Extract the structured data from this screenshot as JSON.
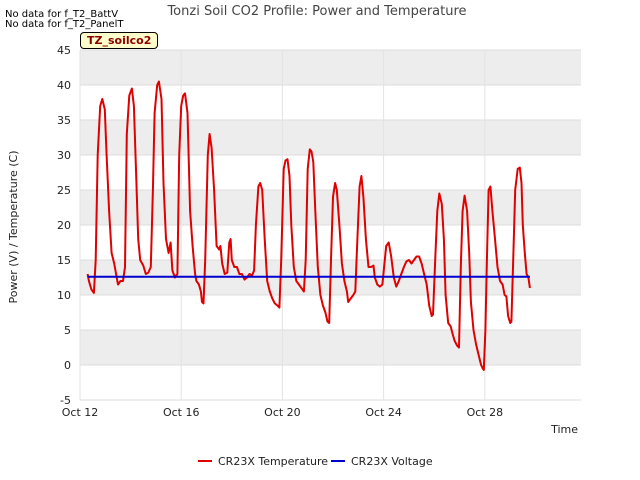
{
  "notes": [
    "No data for f_T2_BattV",
    "No data for f_T2_PanelT"
  ],
  "site_label": "TZ_soilco2",
  "chart_data": {
    "type": "line",
    "title": "Tonzi Soil CO2 Profile: Power and Temperature",
    "xlabel": "Time",
    "ylabel": "Power (V) / Temperature (C)",
    "ylim": [
      -5,
      45
    ],
    "yticks": [
      -5,
      0,
      5,
      10,
      15,
      20,
      25,
      30,
      35,
      40,
      45
    ],
    "xlim": [
      12,
      31.8
    ],
    "xticks": [
      {
        "v": 12,
        "label": "Oct 12"
      },
      {
        "v": 16,
        "label": "Oct 16"
      },
      {
        "v": 20,
        "label": "Oct 20"
      },
      {
        "v": 24,
        "label": "Oct 24"
      },
      {
        "v": 28,
        "label": "Oct 28"
      }
    ],
    "grid": true,
    "legend": "bottom",
    "series": [
      {
        "name": "CR23X Temperature",
        "color": "#e00000",
        "points": [
          [
            12.3,
            13.0
          ],
          [
            12.35,
            12.0
          ],
          [
            12.45,
            10.8
          ],
          [
            12.55,
            10.3
          ],
          [
            12.62,
            15.0
          ],
          [
            12.7,
            30.0
          ],
          [
            12.8,
            37.0
          ],
          [
            12.88,
            38.0
          ],
          [
            12.98,
            36.5
          ],
          [
            13.05,
            30.0
          ],
          [
            13.15,
            22.0
          ],
          [
            13.25,
            16.0
          ],
          [
            13.35,
            14.5
          ],
          [
            13.45,
            12.5
          ],
          [
            13.5,
            11.5
          ],
          [
            13.6,
            12.0
          ],
          [
            13.7,
            12.0
          ],
          [
            13.78,
            14.0
          ],
          [
            13.85,
            33.0
          ],
          [
            13.95,
            38.5
          ],
          [
            14.05,
            39.5
          ],
          [
            14.13,
            37.0
          ],
          [
            14.22,
            27.0
          ],
          [
            14.3,
            18.0
          ],
          [
            14.38,
            15.0
          ],
          [
            14.5,
            14.2
          ],
          [
            14.6,
            13.0
          ],
          [
            14.7,
            13.2
          ],
          [
            14.8,
            14.0
          ],
          [
            14.88,
            25.0
          ],
          [
            14.95,
            36.0
          ],
          [
            15.05,
            40.0
          ],
          [
            15.12,
            40.5
          ],
          [
            15.22,
            38.0
          ],
          [
            15.3,
            26.0
          ],
          [
            15.4,
            18.0
          ],
          [
            15.5,
            16.0
          ],
          [
            15.58,
            17.5
          ],
          [
            15.65,
            13.5
          ],
          [
            15.75,
            12.5
          ],
          [
            15.85,
            13.0
          ],
          [
            15.92,
            30.0
          ],
          [
            16.0,
            37.0
          ],
          [
            16.08,
            38.5
          ],
          [
            16.15,
            38.8
          ],
          [
            16.25,
            36.0
          ],
          [
            16.35,
            22.0
          ],
          [
            16.45,
            17.0
          ],
          [
            16.55,
            13.0
          ],
          [
            16.6,
            12.0
          ],
          [
            16.7,
            11.5
          ],
          [
            16.78,
            10.5
          ],
          [
            16.82,
            9.0
          ],
          [
            16.88,
            8.8
          ],
          [
            16.95,
            15.0
          ],
          [
            17.05,
            30.0
          ],
          [
            17.12,
            33.0
          ],
          [
            17.2,
            31.0
          ],
          [
            17.3,
            25.0
          ],
          [
            17.4,
            17.0
          ],
          [
            17.5,
            16.5
          ],
          [
            17.55,
            17.0
          ],
          [
            17.62,
            14.5
          ],
          [
            17.72,
            13.0
          ],
          [
            17.82,
            13.2
          ],
          [
            17.9,
            17.5
          ],
          [
            17.95,
            18.0
          ],
          [
            18.0,
            15.0
          ],
          [
            18.1,
            14.0
          ],
          [
            18.2,
            14.0
          ],
          [
            18.3,
            13.0
          ],
          [
            18.4,
            13.0
          ],
          [
            18.5,
            12.2
          ],
          [
            18.6,
            12.5
          ],
          [
            18.7,
            13.0
          ],
          [
            18.8,
            12.8
          ],
          [
            18.88,
            13.5
          ],
          [
            18.95,
            20.0
          ],
          [
            19.05,
            25.5
          ],
          [
            19.12,
            26.0
          ],
          [
            19.2,
            25.0
          ],
          [
            19.3,
            18.0
          ],
          [
            19.4,
            12.0
          ],
          [
            19.5,
            10.5
          ],
          [
            19.6,
            9.5
          ],
          [
            19.7,
            8.8
          ],
          [
            19.8,
            8.5
          ],
          [
            19.88,
            8.2
          ],
          [
            19.95,
            15.0
          ],
          [
            20.05,
            28.0
          ],
          [
            20.12,
            29.2
          ],
          [
            20.2,
            29.4
          ],
          [
            20.28,
            27.0
          ],
          [
            20.35,
            20.0
          ],
          [
            20.45,
            14.0
          ],
          [
            20.55,
            12.0
          ],
          [
            20.65,
            11.5
          ],
          [
            20.75,
            11.0
          ],
          [
            20.85,
            10.5
          ],
          [
            20.92,
            15.0
          ],
          [
            21.0,
            28.0
          ],
          [
            21.08,
            30.8
          ],
          [
            21.15,
            30.5
          ],
          [
            21.22,
            29.0
          ],
          [
            21.3,
            22.0
          ],
          [
            21.4,
            14.0
          ],
          [
            21.5,
            10.0
          ],
          [
            21.6,
            8.5
          ],
          [
            21.7,
            7.5
          ],
          [
            21.78,
            6.2
          ],
          [
            21.85,
            6.0
          ],
          [
            21.92,
            15.0
          ],
          [
            22.0,
            24.0
          ],
          [
            22.08,
            26.0
          ],
          [
            22.15,
            25.0
          ],
          [
            22.25,
            20.0
          ],
          [
            22.35,
            14.5
          ],
          [
            22.45,
            12.0
          ],
          [
            22.55,
            10.5
          ],
          [
            22.6,
            9.0
          ],
          [
            22.7,
            9.5
          ],
          [
            22.8,
            10.0
          ],
          [
            22.88,
            10.5
          ],
          [
            22.95,
            17.0
          ],
          [
            23.05,
            25.5
          ],
          [
            23.12,
            27.0
          ],
          [
            23.2,
            24.0
          ],
          [
            23.3,
            18.0
          ],
          [
            23.4,
            14.0
          ],
          [
            23.5,
            14.0
          ],
          [
            23.6,
            14.2
          ],
          [
            23.65,
            12.5
          ],
          [
            23.75,
            11.5
          ],
          [
            23.85,
            11.2
          ],
          [
            23.95,
            11.5
          ],
          [
            24.02,
            14.0
          ],
          [
            24.1,
            17.0
          ],
          [
            24.2,
            17.5
          ],
          [
            24.3,
            15.5
          ],
          [
            24.4,
            12.5
          ],
          [
            24.5,
            11.2
          ],
          [
            24.6,
            12.0
          ],
          [
            24.7,
            13.0
          ],
          [
            24.8,
            14.0
          ],
          [
            24.9,
            14.8
          ],
          [
            25.0,
            15.0
          ],
          [
            25.1,
            14.5
          ],
          [
            25.2,
            15.0
          ],
          [
            25.3,
            15.5
          ],
          [
            25.4,
            15.5
          ],
          [
            25.5,
            14.5
          ],
          [
            25.6,
            13.0
          ],
          [
            25.7,
            11.5
          ],
          [
            25.8,
            8.5
          ],
          [
            25.9,
            7.0
          ],
          [
            25.95,
            7.2
          ],
          [
            26.05,
            16.0
          ],
          [
            26.12,
            22.0
          ],
          [
            26.2,
            24.5
          ],
          [
            26.3,
            23.0
          ],
          [
            26.38,
            18.0
          ],
          [
            26.45,
            10.0
          ],
          [
            26.55,
            6.0
          ],
          [
            26.65,
            5.5
          ],
          [
            26.72,
            4.5
          ],
          [
            26.8,
            3.5
          ],
          [
            26.9,
            2.8
          ],
          [
            26.98,
            2.5
          ],
          [
            27.05,
            14.0
          ],
          [
            27.12,
            22.0
          ],
          [
            27.2,
            24.2
          ],
          [
            27.3,
            22.0
          ],
          [
            27.38,
            16.0
          ],
          [
            27.45,
            9.0
          ],
          [
            27.55,
            5.0
          ],
          [
            27.65,
            3.0
          ],
          [
            27.75,
            1.5
          ],
          [
            27.85,
            0.0
          ],
          [
            27.92,
            -0.5
          ],
          [
            27.96,
            -0.7
          ],
          [
            28.02,
            5.0
          ],
          [
            28.08,
            15.0
          ],
          [
            28.15,
            25.0
          ],
          [
            28.22,
            25.5
          ],
          [
            28.3,
            22.0
          ],
          [
            28.4,
            18.0
          ],
          [
            28.5,
            14.0
          ],
          [
            28.6,
            12.0
          ],
          [
            28.7,
            11.5
          ],
          [
            28.78,
            10.0
          ],
          [
            28.85,
            9.8
          ],
          [
            28.92,
            7.0
          ],
          [
            29.0,
            6.0
          ],
          [
            29.05,
            6.2
          ],
          [
            29.12,
            15.0
          ],
          [
            29.2,
            25.0
          ],
          [
            29.3,
            28.0
          ],
          [
            29.38,
            28.2
          ],
          [
            29.45,
            26.0
          ],
          [
            29.5,
            20.0
          ],
          [
            29.58,
            16.0
          ],
          [
            29.65,
            13.0
          ],
          [
            29.72,
            12.5
          ],
          [
            29.78,
            11.0
          ]
        ]
      },
      {
        "name": "CR23X Voltage",
        "color": "#0000cc",
        "points": [
          [
            12.3,
            12.6
          ],
          [
            29.78,
            12.6
          ]
        ]
      }
    ]
  }
}
